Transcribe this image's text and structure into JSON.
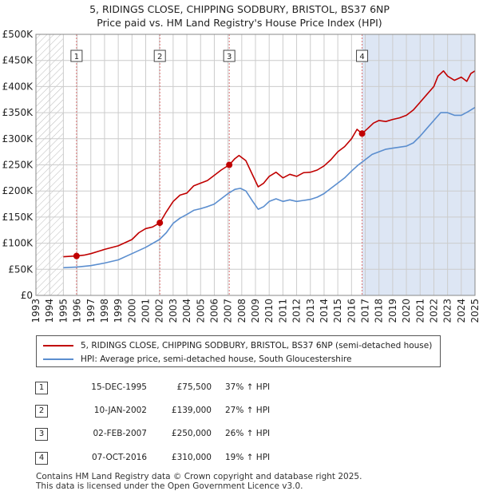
{
  "title_line1": "5, RIDINGS CLOSE, CHIPPING SODBURY, BRISTOL, BS37 6NP",
  "title_line2": "Price paid vs. HM Land Registry's House Price Index (HPI)",
  "colors": {
    "property": "#c00000",
    "hpi": "#5b8ecf",
    "shade": "#dde6f4",
    "grid": "#cccccc",
    "marker": "#d97070"
  },
  "legend": {
    "property": "5, RIDINGS CLOSE, CHIPPING SODBURY, BRISTOL, BS37 6NP (semi-detached house)",
    "hpi": "HPI: Average price, semi-detached house, South Gloucestershire"
  },
  "sales": [
    {
      "num": "1",
      "date": "15-DEC-1995",
      "price": "£75,500",
      "hpi": "37% ↑ HPI"
    },
    {
      "num": "2",
      "date": "10-JAN-2002",
      "price": "£139,000",
      "hpi": "27% ↑ HPI"
    },
    {
      "num": "3",
      "date": "02-FEB-2007",
      "price": "£250,000",
      "hpi": "26% ↑ HPI"
    },
    {
      "num": "4",
      "date": "07-OCT-2016",
      "price": "£310,000",
      "hpi": "19% ↑ HPI"
    }
  ],
  "footer_line1": "Contains HM Land Registry data © Crown copyright and database right 2025.",
  "footer_line2": "This data is licensed under the Open Government Licence v3.0.",
  "chart_data": {
    "type": "line",
    "title": "5, RIDINGS CLOSE, CHIPPING SODBURY, BRISTOL, BS37 6NP",
    "subtitle": "Price paid vs. HM Land Registry's House Price Index (HPI)",
    "xlim": [
      1993,
      2025
    ],
    "ylim": [
      0,
      500000
    ],
    "x_ticks": [
      1993,
      1994,
      1995,
      1996,
      1997,
      1998,
      1999,
      2000,
      2001,
      2002,
      2003,
      2004,
      2005,
      2006,
      2007,
      2008,
      2009,
      2010,
      2011,
      2012,
      2013,
      2014,
      2015,
      2016,
      2017,
      2018,
      2019,
      2020,
      2021,
      2022,
      2023,
      2024,
      2025
    ],
    "y_ticks": [
      0,
      50000,
      100000,
      150000,
      200000,
      250000,
      300000,
      350000,
      400000,
      450000,
      500000
    ],
    "y_tick_labels": [
      "£0",
      "£50K",
      "£100K",
      "£150K",
      "£200K",
      "£250K",
      "£300K",
      "£350K",
      "£400K",
      "£450K",
      "£500K"
    ],
    "grid": true,
    "shaded_before": 1995.0,
    "sale_markers": [
      {
        "label": "1",
        "x": 1995.96,
        "y": 75500
      },
      {
        "label": "2",
        "x": 2002.03,
        "y": 139000
      },
      {
        "label": "3",
        "x": 2007.09,
        "y": 250000
      },
      {
        "label": "4",
        "x": 2016.77,
        "y": 310000
      }
    ],
    "series": [
      {
        "name": "5, RIDINGS CLOSE, CHIPPING SODBURY, BRISTOL, BS37 6NP (semi-detached house)",
        "points": [
          [
            1995.0,
            74000
          ],
          [
            1995.96,
            75500
          ],
          [
            1996.5,
            77000
          ],
          [
            1997.0,
            80000
          ],
          [
            1998.0,
            88000
          ],
          [
            1999.0,
            95000
          ],
          [
            2000.0,
            107000
          ],
          [
            2000.5,
            120000
          ],
          [
            2001.0,
            128000
          ],
          [
            2001.5,
            131000
          ],
          [
            2002.03,
            139000
          ],
          [
            2002.5,
            160000
          ],
          [
            2003.0,
            180000
          ],
          [
            2003.5,
            192000
          ],
          [
            2004.0,
            196000
          ],
          [
            2004.5,
            210000
          ],
          [
            2005.0,
            215000
          ],
          [
            2005.5,
            220000
          ],
          [
            2006.0,
            230000
          ],
          [
            2006.5,
            240000
          ],
          [
            2007.09,
            250000
          ],
          [
            2007.5,
            262000
          ],
          [
            2007.8,
            268000
          ],
          [
            2008.3,
            258000
          ],
          [
            2008.8,
            230000
          ],
          [
            2009.2,
            208000
          ],
          [
            2009.6,
            215000
          ],
          [
            2010.0,
            228000
          ],
          [
            2010.5,
            236000
          ],
          [
            2011.0,
            225000
          ],
          [
            2011.5,
            232000
          ],
          [
            2012.0,
            228000
          ],
          [
            2012.5,
            235000
          ],
          [
            2013.0,
            236000
          ],
          [
            2013.5,
            240000
          ],
          [
            2014.0,
            248000
          ],
          [
            2014.5,
            260000
          ],
          [
            2015.0,
            275000
          ],
          [
            2015.5,
            285000
          ],
          [
            2016.0,
            300000
          ],
          [
            2016.4,
            318000
          ],
          [
            2016.77,
            310000
          ],
          [
            2017.2,
            320000
          ],
          [
            2017.6,
            330000
          ],
          [
            2018.0,
            335000
          ],
          [
            2018.5,
            333000
          ],
          [
            2019.0,
            337000
          ],
          [
            2019.5,
            340000
          ],
          [
            2020.0,
            345000
          ],
          [
            2020.5,
            355000
          ],
          [
            2021.0,
            370000
          ],
          [
            2021.5,
            385000
          ],
          [
            2022.0,
            400000
          ],
          [
            2022.3,
            420000
          ],
          [
            2022.7,
            430000
          ],
          [
            2023.0,
            420000
          ],
          [
            2023.5,
            412000
          ],
          [
            2024.0,
            418000
          ],
          [
            2024.4,
            410000
          ],
          [
            2024.7,
            425000
          ],
          [
            2025.0,
            430000
          ]
        ]
      },
      {
        "name": "HPI: Average price, semi-detached house, South Gloucestershire",
        "points": [
          [
            1995.0,
            53000
          ],
          [
            1996.0,
            54500
          ],
          [
            1997.0,
            57000
          ],
          [
            1998.0,
            62000
          ],
          [
            1999.0,
            68000
          ],
          [
            2000.0,
            80000
          ],
          [
            2001.0,
            92000
          ],
          [
            2002.0,
            107000
          ],
          [
            2002.5,
            120000
          ],
          [
            2003.0,
            138000
          ],
          [
            2003.5,
            148000
          ],
          [
            2004.0,
            155000
          ],
          [
            2004.5,
            163000
          ],
          [
            2005.0,
            166000
          ],
          [
            2005.5,
            170000
          ],
          [
            2006.0,
            175000
          ],
          [
            2006.5,
            185000
          ],
          [
            2007.0,
            195000
          ],
          [
            2007.5,
            203000
          ],
          [
            2007.9,
            205000
          ],
          [
            2008.3,
            200000
          ],
          [
            2008.8,
            180000
          ],
          [
            2009.2,
            165000
          ],
          [
            2009.6,
            170000
          ],
          [
            2010.0,
            180000
          ],
          [
            2010.5,
            185000
          ],
          [
            2011.0,
            180000
          ],
          [
            2011.5,
            183000
          ],
          [
            2012.0,
            180000
          ],
          [
            2012.5,
            182000
          ],
          [
            2013.0,
            184000
          ],
          [
            2013.5,
            188000
          ],
          [
            2014.0,
            195000
          ],
          [
            2014.5,
            205000
          ],
          [
            2015.0,
            215000
          ],
          [
            2015.5,
            225000
          ],
          [
            2016.0,
            238000
          ],
          [
            2016.5,
            250000
          ],
          [
            2017.0,
            260000
          ],
          [
            2017.5,
            270000
          ],
          [
            2018.0,
            275000
          ],
          [
            2018.5,
            280000
          ],
          [
            2019.0,
            282000
          ],
          [
            2019.5,
            284000
          ],
          [
            2020.0,
            286000
          ],
          [
            2020.5,
            292000
          ],
          [
            2021.0,
            305000
          ],
          [
            2021.5,
            320000
          ],
          [
            2022.0,
            335000
          ],
          [
            2022.5,
            350000
          ],
          [
            2023.0,
            350000
          ],
          [
            2023.5,
            345000
          ],
          [
            2024.0,
            345000
          ],
          [
            2024.5,
            352000
          ],
          [
            2025.0,
            360000
          ]
        ]
      }
    ]
  }
}
